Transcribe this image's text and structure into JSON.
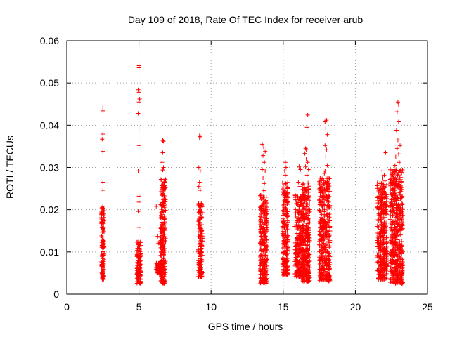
{
  "chart_data": {
    "type": "scatter",
    "title": "Day 109 of 2018, Rate Of TEC Index for receiver arub",
    "xlabel": "GPS time / hours",
    "ylabel": "ROTI / TECUs",
    "xlim": [
      0,
      25
    ],
    "ylim": [
      0,
      0.06
    ],
    "x_ticks": [
      0,
      5,
      10,
      15,
      20,
      25
    ],
    "y_ticks": [
      0,
      0.01,
      0.02,
      0.03,
      0.04,
      0.05,
      0.06
    ],
    "x_tick_labels": [
      "0",
      "5",
      "10",
      "15",
      "20",
      "25"
    ],
    "y_tick_labels": [
      "0",
      "0.01",
      "0.02",
      "0.03",
      "0.04",
      "0.05",
      "0.06"
    ],
    "grid": true,
    "marker": "plus",
    "color": "#ff0000",
    "clusters": [
      {
        "x_range": [
          2.4,
          2.6
        ],
        "y_range": [
          0.0035,
          0.0205
        ],
        "outliers": [
          [
            2.5,
            0.0443
          ],
          [
            2.5,
            0.0434
          ],
          [
            2.5,
            0.0379
          ],
          [
            2.45,
            0.0367
          ],
          [
            2.5,
            0.0338
          ],
          [
            2.5,
            0.0265
          ],
          [
            2.5,
            0.0246
          ],
          [
            2.5,
            0.0208
          ],
          [
            2.45,
            0.0205
          ]
        ]
      },
      {
        "x_range": [
          4.85,
          5.15
        ],
        "y_range": [
          0.0025,
          0.0125
        ],
        "outliers": [
          [
            5.0,
            0.0541
          ],
          [
            5.0,
            0.0536
          ],
          [
            4.95,
            0.0484
          ],
          [
            5.0,
            0.0478
          ],
          [
            5.05,
            0.0462
          ],
          [
            5.0,
            0.0455
          ],
          [
            4.95,
            0.0428
          ],
          [
            5.0,
            0.0393
          ],
          [
            5.0,
            0.0352
          ],
          [
            4.95,
            0.0292
          ],
          [
            5.0,
            0.0232
          ],
          [
            5.0,
            0.0218
          ],
          [
            4.95,
            0.0196
          ],
          [
            5.0,
            0.0158
          ]
        ]
      },
      {
        "x_range": [
          6.2,
          6.6
        ],
        "y_range": [
          0.005,
          0.0075
        ],
        "outliers": [
          [
            6.2,
            0.0208
          ],
          [
            6.3,
            0.0137
          ],
          [
            6.35,
            0.0121
          ]
        ]
      },
      {
        "x_range": [
          6.5,
          6.85
        ],
        "y_range": [
          0.0025,
          0.0275
        ],
        "outliers": [
          [
            6.65,
            0.0364
          ],
          [
            6.7,
            0.0362
          ],
          [
            6.65,
            0.0335
          ],
          [
            6.6,
            0.0312
          ],
          [
            6.7,
            0.03
          ],
          [
            6.65,
            0.0294
          ]
        ]
      },
      {
        "x_range": [
          9.1,
          9.4
        ],
        "y_range": [
          0.004,
          0.0215
        ],
        "outliers": [
          [
            9.2,
            0.0375
          ],
          [
            9.25,
            0.0373
          ],
          [
            9.2,
            0.037
          ],
          [
            9.15,
            0.03
          ],
          [
            9.25,
            0.0292
          ],
          [
            9.2,
            0.0265
          ],
          [
            9.15,
            0.0255
          ],
          [
            9.25,
            0.0246
          ]
        ]
      },
      {
        "x_range": [
          13.4,
          13.9
        ],
        "y_range": [
          0.0025,
          0.0235
        ],
        "outliers": [
          [
            13.55,
            0.0355
          ],
          [
            13.65,
            0.0348
          ],
          [
            13.75,
            0.0338
          ],
          [
            13.6,
            0.0328
          ],
          [
            13.7,
            0.0312
          ],
          [
            13.55,
            0.0295
          ],
          [
            13.75,
            0.0292
          ],
          [
            13.6,
            0.0275
          ],
          [
            13.7,
            0.0262
          ],
          [
            13.65,
            0.0245
          ]
        ]
      },
      {
        "x_range": [
          14.95,
          15.35
        ],
        "y_range": [
          0.0045,
          0.0265
        ],
        "outliers": [
          [
            15.15,
            0.0312
          ],
          [
            15.2,
            0.03
          ],
          [
            15.1,
            0.0292
          ],
          [
            15.15,
            0.0282
          ]
        ]
      },
      {
        "x_range": [
          15.8,
          16.4
        ],
        "y_range": [
          0.004,
          0.0235
        ],
        "outliers": [
          [
            16.1,
            0.0302
          ],
          [
            16.2,
            0.0295
          ],
          [
            16.05,
            0.0265
          ],
          [
            16.15,
            0.0255
          ]
        ]
      },
      {
        "x_range": [
          16.35,
          16.85
        ],
        "y_range": [
          0.003,
          0.0265
        ],
        "outliers": [
          [
            16.7,
            0.0424
          ],
          [
            16.65,
            0.0395
          ],
          [
            16.55,
            0.0345
          ],
          [
            16.6,
            0.0342
          ],
          [
            16.5,
            0.0333
          ],
          [
            16.6,
            0.032
          ],
          [
            16.7,
            0.0312
          ],
          [
            16.55,
            0.0302
          ],
          [
            16.75,
            0.0295
          ],
          [
            16.65,
            0.0282
          ]
        ]
      },
      {
        "x_range": [
          17.5,
          18.25
        ],
        "y_range": [
          0.003,
          0.0275
        ],
        "outliers": [
          [
            18.0,
            0.0412
          ],
          [
            17.9,
            0.0408
          ],
          [
            17.95,
            0.0393
          ],
          [
            18.05,
            0.0378
          ],
          [
            17.9,
            0.0352
          ],
          [
            18.0,
            0.0342
          ],
          [
            17.95,
            0.0325
          ],
          [
            18.05,
            0.0305
          ],
          [
            17.9,
            0.0292
          ],
          [
            17.85,
            0.0286
          ]
        ]
      },
      {
        "x_range": [
          21.5,
          22.2
        ],
        "y_range": [
          0.0035,
          0.0265
        ],
        "outliers": [
          [
            22.1,
            0.0335
          ],
          [
            21.85,
            0.0292
          ],
          [
            22.0,
            0.0282
          ],
          [
            21.9,
            0.0275
          ],
          [
            22.05,
            0.0268
          ]
        ]
      },
      {
        "x_range": [
          22.4,
          23.3
        ],
        "y_range": [
          0.0025,
          0.0295
        ],
        "outliers": [
          [
            22.95,
            0.0455
          ],
          [
            23.0,
            0.0448
          ],
          [
            22.9,
            0.0432
          ],
          [
            23.0,
            0.0408
          ],
          [
            22.85,
            0.0388
          ],
          [
            22.95,
            0.0365
          ],
          [
            23.1,
            0.0352
          ],
          [
            22.9,
            0.0345
          ],
          [
            23.0,
            0.0332
          ],
          [
            22.8,
            0.0325
          ],
          [
            23.05,
            0.0312
          ],
          [
            22.75,
            0.0305
          ],
          [
            22.6,
            0.0288
          ],
          [
            22.7,
            0.0295
          ]
        ]
      }
    ]
  }
}
